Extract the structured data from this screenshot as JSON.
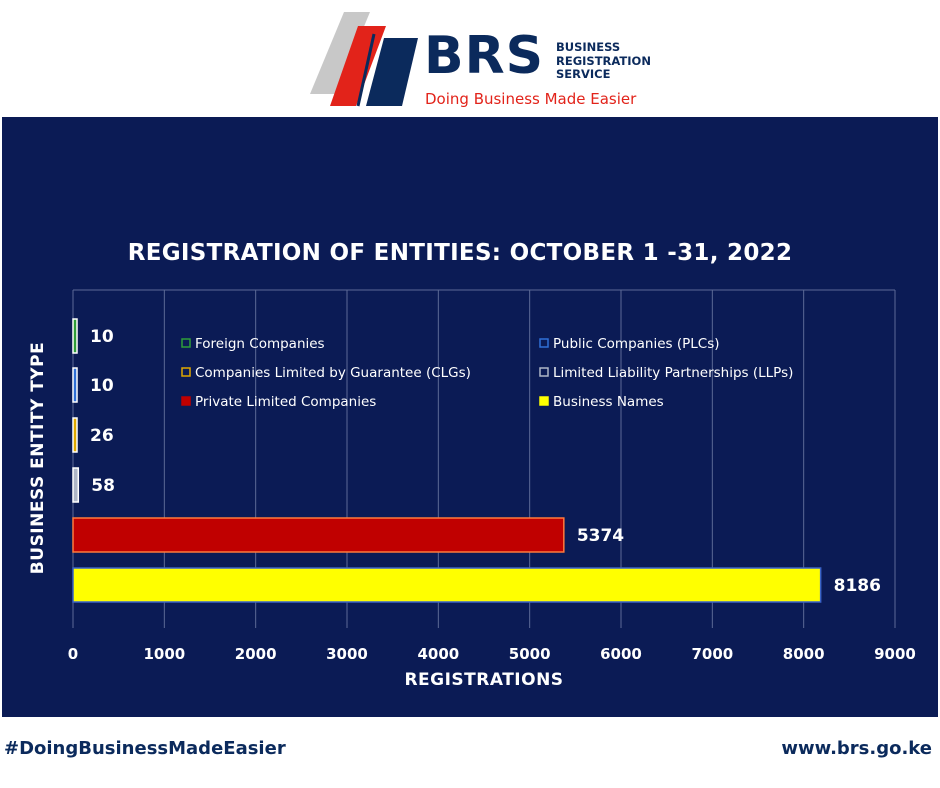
{
  "header": {
    "brand": "BRS",
    "service_lines": [
      "BUSINESS",
      "REGISTRATION",
      "SERVICE"
    ],
    "tagline": "Doing Business Made Easier",
    "logo_icon": "brs-stripes-logo-icon"
  },
  "footer": {
    "hashtag": "#DoingBusinessMadeEasier",
    "url": "www.brs.go.ke"
  },
  "colors": {
    "panel_bg": "#0b1b55",
    "brand_navy": "#0b2a5c",
    "brand_red": "#e2231a"
  },
  "chart_data": {
    "type": "bar",
    "orientation": "horizontal",
    "title": "REGISTRATION OF ENTITIES: OCTOBER 1 -31, 2022",
    "xlabel": "REGISTRATIONS",
    "ylabel": "BUSINESS ENTITY TYPE",
    "xlim": [
      0,
      9000
    ],
    "xticks": [
      0,
      1000,
      2000,
      3000,
      4000,
      5000,
      6000,
      7000,
      8000,
      9000
    ],
    "grid": true,
    "legend_position": "inside-top",
    "series": [
      {
        "name": "Foreign Companies",
        "value": 10,
        "color": "#2e9e3a"
      },
      {
        "name": "Public Companies (PLCs)",
        "value": 10,
        "color": "#2f6fd6"
      },
      {
        "name": "Companies Limited by Guarantee (CLGs)",
        "value": 26,
        "color": "#e0a800"
      },
      {
        "name": "Limited Liability Partnerships (LLPs)",
        "value": 58,
        "color": "#aeb6c6"
      },
      {
        "name": "Private Limited Companies",
        "value": 5374,
        "color": "#c00000"
      },
      {
        "name": "Business Names",
        "value": 8186,
        "color": "#ffff00"
      }
    ],
    "data_labels": [
      "10",
      "10",
      "26",
      "58",
      "5374",
      "8186"
    ]
  }
}
